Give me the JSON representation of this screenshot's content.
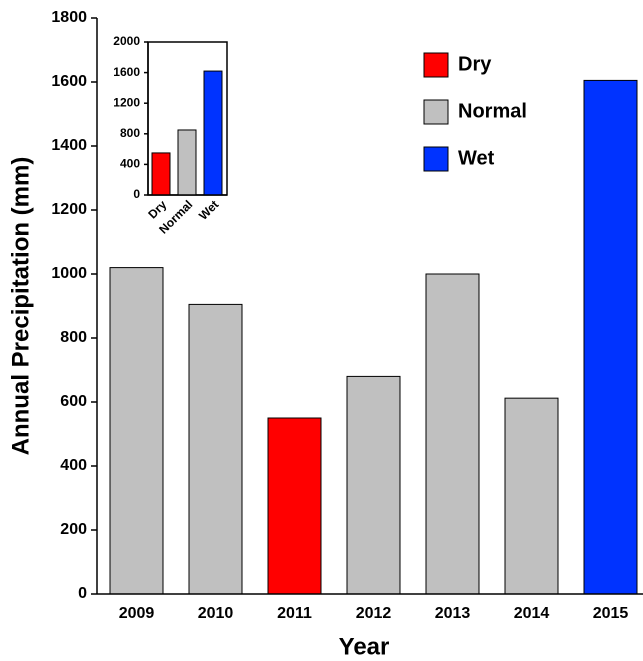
{
  "chart_data": [
    {
      "type": "bar",
      "xlabel": "Year",
      "ylabel": "Annual Precipitation (mm)",
      "categories": [
        "2009",
        "2010",
        "2011",
        "2012",
        "2013",
        "2014",
        "2015"
      ],
      "values": [
        1020,
        905,
        550,
        680,
        1000,
        612,
        1605
      ],
      "colors": [
        "#c0c0c0",
        "#c0c0c0",
        "#ff0000",
        "#c0c0c0",
        "#c0c0c0",
        "#c0c0c0",
        "#0033ff"
      ],
      "ylim": [
        0,
        1800
      ],
      "yticks": [
        0,
        200,
        400,
        600,
        800,
        1000,
        1200,
        1400,
        1600,
        1800
      ],
      "legend": [
        {
          "name": "Dry",
          "color": "#ff0000"
        },
        {
          "name": "Normal",
          "color": "#c0c0c0"
        },
        {
          "name": "Wet",
          "color": "#0033ff"
        }
      ],
      "legend_position": "upper right"
    },
    {
      "type": "bar",
      "categories": [
        "Dry",
        "Normal",
        "Wet"
      ],
      "values": [
        550,
        850,
        1620
      ],
      "colors": [
        "#ff0000",
        "#c0c0c0",
        "#0033ff"
      ],
      "ylim": [
        0,
        2000
      ],
      "yticks": [
        0,
        400,
        800,
        1200,
        1600,
        2000
      ]
    }
  ]
}
